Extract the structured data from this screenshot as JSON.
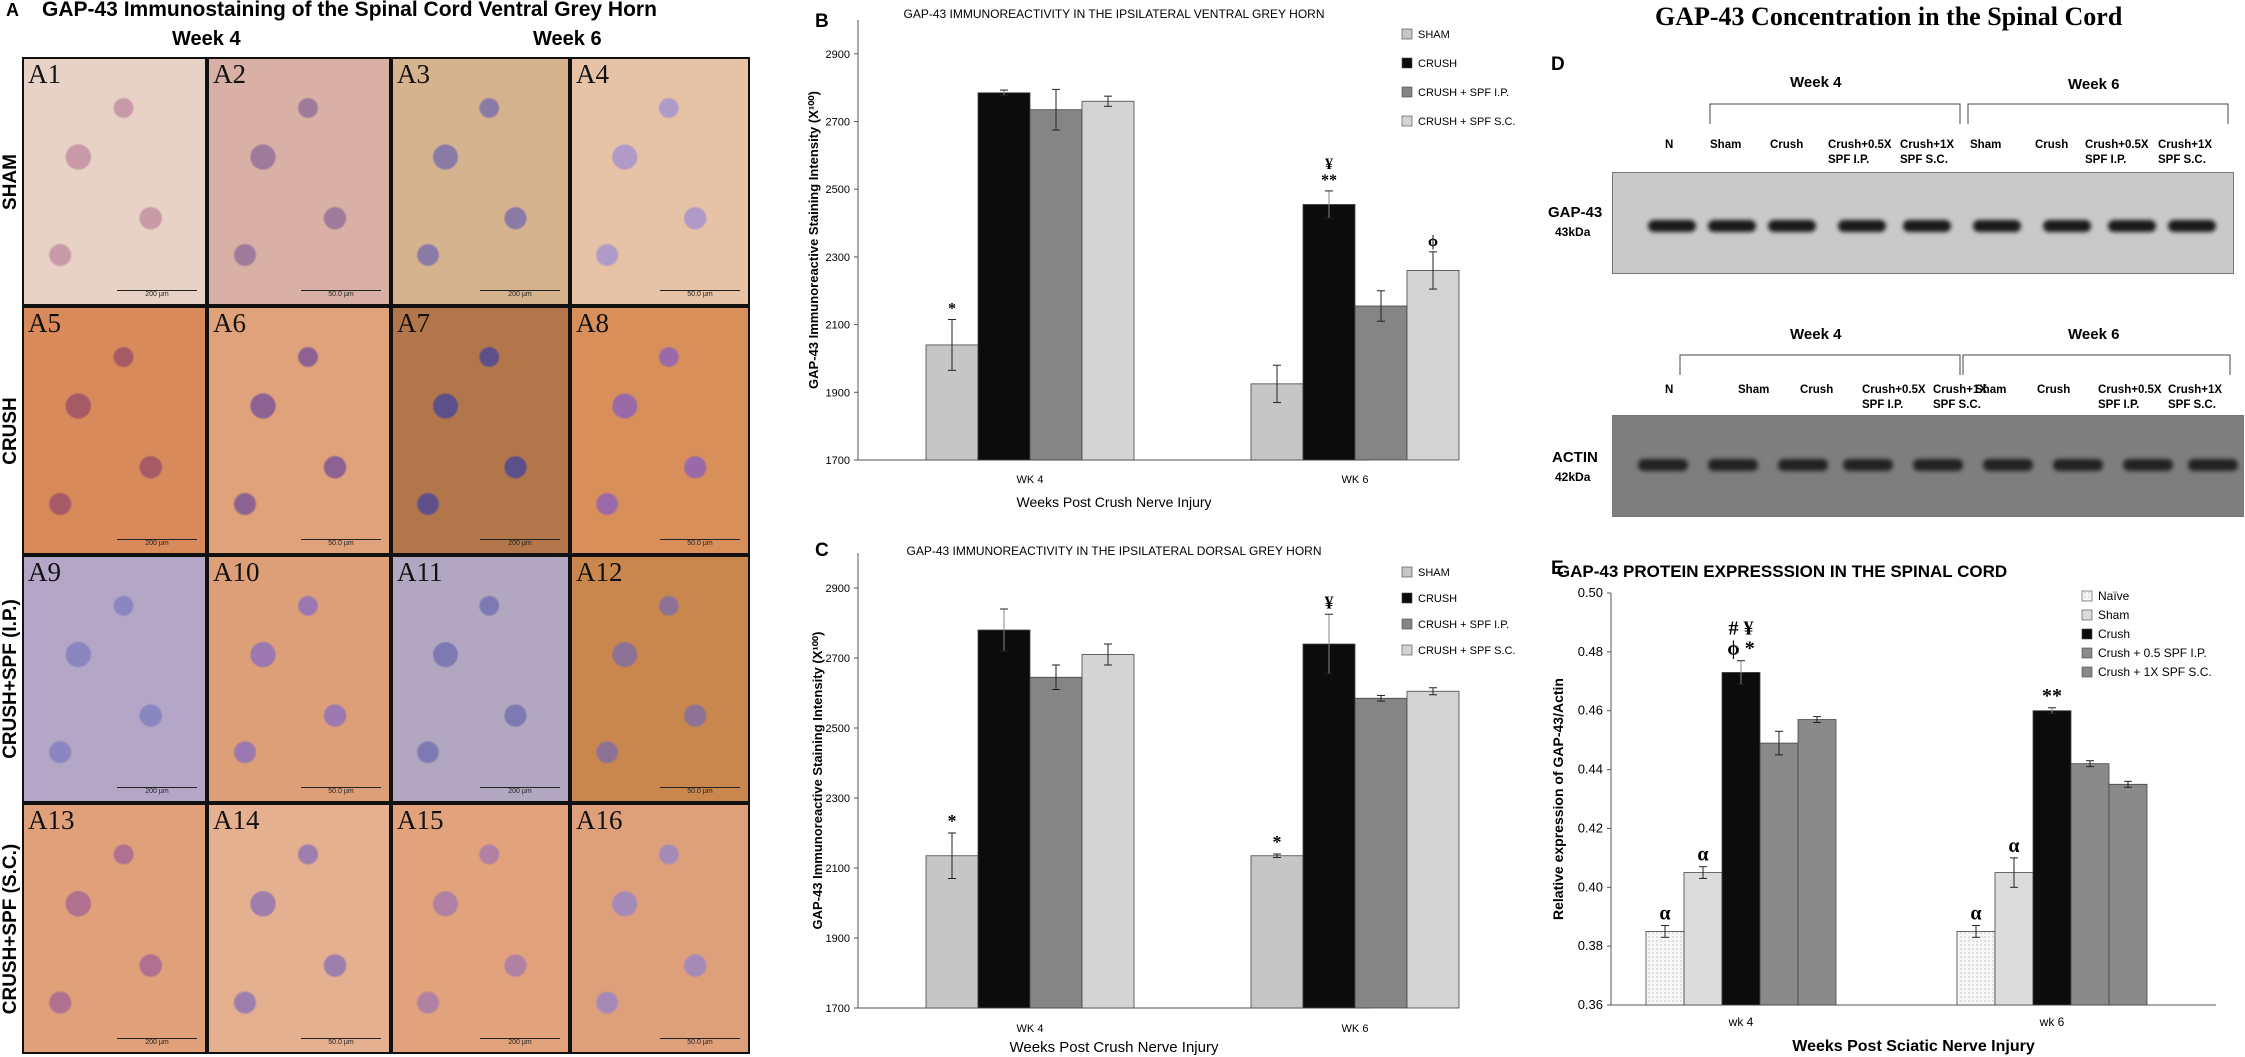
{
  "panel_a": {
    "letter": "A",
    "title": "GAP-43 Immunostaining of the Spinal Cord Ventral Grey Horn",
    "col_groups": [
      "Week 4",
      "Week 6"
    ],
    "row_labels": [
      "SHAM",
      "CRUSH",
      "CRUSH+SPF (I.P.)",
      "CRUSH+SPF (S.C.)"
    ],
    "tiles": [
      "A1",
      "A2",
      "A3",
      "A4",
      "A5",
      "A6",
      "A7",
      "A8",
      "A9",
      "A10",
      "A11",
      "A12",
      "A13",
      "A14",
      "A15",
      "A16"
    ],
    "scale_labels": [
      "200 µm",
      "50.0 µm",
      "200 µm",
      "50.0 µm",
      "200 µm",
      "50.0 µm",
      "200 µm",
      "50.0 µm",
      "200 µm",
      "50.0 µm",
      "200 µm",
      "50.0 µm",
      "200 µm",
      "50.0 µm",
      "200 µm",
      "50.0 µm"
    ]
  },
  "panel_b_letter": "B",
  "panel_c_letter": "C",
  "panel_d": {
    "letter": "D",
    "title": "GAP-43 Concentration in the Spinal Cord",
    "week_labels": [
      "Week 4",
      "Week 6"
    ],
    "lanes_top": [
      "N",
      "Sham",
      "Crush",
      "Crush+0.5X SPF I.P.",
      "Crush+1X SPF S.C.",
      "Sham",
      "Crush",
      "Crush+0.5X SPF I.P.",
      "Crush+1X SPF S.C."
    ],
    "lanes_bottom": [
      "N",
      "Sham",
      "Crush",
      "Crush+0.5X SPF I.P.",
      "Crush+1X SPF S.C.",
      "Sham",
      "Crush",
      "Crush+0.5X SPF I.P.",
      "Crush+1X SPF S.C."
    ],
    "blot1_label": "GAP-43",
    "blot1_kda": "43kDa",
    "blot2_label": "ACTIN",
    "blot2_kda": "42kDa"
  },
  "panel_e_letter": "E",
  "chart_data": [
    {
      "id": "B",
      "type": "bar",
      "title": "GAP-43 IMMUNOREACTIVITY IN THE IPSILATERAL VENTRAL GREY HORN",
      "xlabel": "Weeks Post Crush Nerve Injury",
      "ylabel": "GAP-43 Immunoreactive Staining Intensity (X¹⁰⁰)",
      "ylim": [
        1700,
        3000
      ],
      "yticks": [
        1700,
        1900,
        2100,
        2300,
        2500,
        2700,
        2900
      ],
      "categories": [
        "WK 4",
        "WK 6"
      ],
      "series": [
        {
          "name": "SHAM",
          "color": "#c6c6c6",
          "values": [
            2040,
            1925
          ],
          "errors": [
            75,
            55
          ],
          "annotations": [
            "*",
            ""
          ]
        },
        {
          "name": "CRUSH",
          "color": "#0c0c0c",
          "values": [
            2785,
            2455
          ],
          "errors": [
            8,
            40
          ],
          "annotations": [
            "",
            "**"
          ]
        },
        {
          "name": "CRUSH + SPF I.P.",
          "color": "#858585",
          "values": [
            2735,
            2155
          ],
          "errors": [
            60,
            45
          ],
          "annotations": [
            "",
            ""
          ]
        },
        {
          "name": "CRUSH + SPF S.C.",
          "color": "#d4d4d4",
          "values": [
            2760,
            2260
          ],
          "errors": [
            15,
            55
          ],
          "annotations": [
            "",
            "ϕ"
          ]
        }
      ],
      "extra_annotations": [
        {
          "category": "WK 6",
          "series": "CRUSH",
          "text": "¥"
        }
      ]
    },
    {
      "id": "C",
      "type": "bar",
      "title": "GAP-43 IMMUNOREACTIVITY IN THE IPSILATERAL DORSAL GREY HORN",
      "xlabel": "Weeks Post Crush Nerve Injury",
      "ylabel": "GAP-43 Immunoreactive Staining Intensity (X¹⁰⁰)",
      "ylim": [
        1700,
        3000
      ],
      "yticks": [
        1700,
        1900,
        2100,
        2300,
        2500,
        2700,
        2900
      ],
      "categories": [
        "WK 4",
        "WK 6"
      ],
      "series": [
        {
          "name": "SHAM",
          "color": "#c6c6c6",
          "values": [
            2135,
            2135
          ],
          "errors": [
            65,
            5
          ],
          "annotations": [
            "*",
            "*"
          ]
        },
        {
          "name": "CRUSH",
          "color": "#0c0c0c",
          "values": [
            2780,
            2740
          ],
          "errors": [
            60,
            85
          ],
          "annotations": [
            "",
            "¥"
          ]
        },
        {
          "name": "CRUSH + SPF I.P.",
          "color": "#858585",
          "values": [
            2645,
            2585
          ],
          "errors": [
            35,
            8
          ],
          "annotations": [
            "",
            ""
          ]
        },
        {
          "name": "CRUSH + SPF S.C.",
          "color": "#d4d4d4",
          "values": [
            2710,
            2605
          ],
          "errors": [
            30,
            10
          ],
          "annotations": [
            "",
            ""
          ]
        }
      ]
    },
    {
      "id": "E",
      "type": "bar",
      "title": "GAP-43 PROTEIN EXPRESSSION IN THE SPINAL CORD",
      "xlabel": "Weeks Post Sciatic Nerve Injury",
      "ylabel": "Relative expression of GAP-43/Actin",
      "ylim": [
        0.36,
        0.5
      ],
      "yticks": [
        0.36,
        0.38,
        0.4,
        0.42,
        0.44,
        0.46,
        0.48,
        0.5
      ],
      "categories": [
        "wk 4",
        "wk 6"
      ],
      "series": [
        {
          "name": "Naïve",
          "color": "#f3f3f3",
          "values": [
            0.385,
            0.385
          ],
          "errors": [
            0.002,
            0.002
          ],
          "annotations": [
            "α",
            "α"
          ]
        },
        {
          "name": "Sham",
          "color": "#dcdcdc",
          "values": [
            0.405,
            0.405
          ],
          "errors": [
            0.002,
            0.005
          ],
          "annotations": [
            "α",
            "α"
          ]
        },
        {
          "name": "Crush",
          "color": "#0c0c0c",
          "values": [
            0.473,
            0.46
          ],
          "errors": [
            0.004,
            0.001
          ],
          "annotations": [
            "ϕ *",
            "**"
          ]
        },
        {
          "name": "Crush + 0.5 SPF I.P.",
          "color": "#8a8a8a",
          "values": [
            0.449,
            0.442
          ],
          "errors": [
            0.004,
            0.001
          ],
          "annotations": [
            "",
            ""
          ]
        },
        {
          "name": "Crush + 1X SPF S.C.",
          "color": "#8a8a8a",
          "values": [
            0.457,
            0.435
          ],
          "errors": [
            0.001,
            0.001
          ],
          "annotations": [
            "",
            ""
          ]
        }
      ],
      "extra_annotations": [
        {
          "category": "wk 4",
          "series": "Crush",
          "text": "# ¥"
        }
      ]
    }
  ]
}
